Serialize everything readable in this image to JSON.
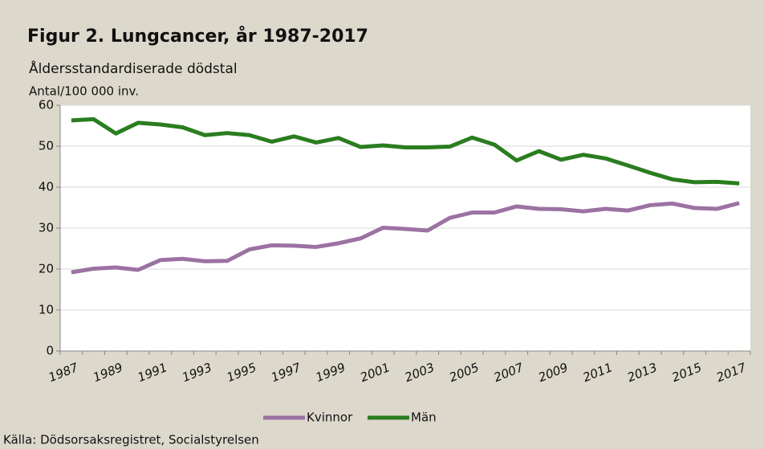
{
  "chart_data": {
    "type": "line",
    "title": "Figur 2. Lungcancer, år 1987-2017",
    "subtitle": "Åldersstandardiserade dödstal",
    "y_label": "Antal/100 000 inv.",
    "source": "Källa: Dödsorsaksregistret, Socialstyrelsen",
    "categories": [
      "1987",
      null,
      "1989",
      null,
      "1991",
      null,
      "1993",
      null,
      "1995",
      null,
      "1997",
      null,
      "1999",
      null,
      "2001",
      null,
      "2003",
      null,
      "2005",
      null,
      "2007",
      null,
      "2009",
      null,
      "2011",
      null,
      "2013",
      null,
      "2015",
      null,
      "2017"
    ],
    "series": [
      {
        "name": "Kvinnor",
        "color": "#9b72a2",
        "values": [
          19.2,
          20.1,
          20.4,
          19.8,
          22.2,
          22.5,
          21.9,
          22.0,
          24.8,
          25.8,
          25.7,
          25.4,
          26.3,
          27.5,
          30.1,
          29.8,
          29.4,
          32.5,
          33.8,
          33.8,
          35.3,
          34.7,
          34.6,
          34.1,
          34.7,
          34.3,
          35.6,
          36.0,
          34.9,
          34.7,
          36.1
        ]
      },
      {
        "name": "Män",
        "color": "#2a7d1f",
        "values": [
          56.3,
          56.6,
          53.1,
          55.7,
          55.3,
          54.6,
          52.7,
          53.2,
          52.7,
          51.1,
          52.4,
          50.9,
          52.0,
          49.8,
          50.2,
          49.7,
          49.7,
          49.9,
          52.1,
          50.4,
          46.5,
          48.8,
          46.7,
          47.9,
          47.0,
          45.3,
          43.5,
          41.9,
          41.2,
          41.3,
          40.9
        ]
      }
    ],
    "ylim": [
      0,
      60
    ],
    "yticks": [
      0,
      10,
      20,
      30,
      40,
      50,
      60
    ],
    "grid": true,
    "legend": "bottom"
  }
}
